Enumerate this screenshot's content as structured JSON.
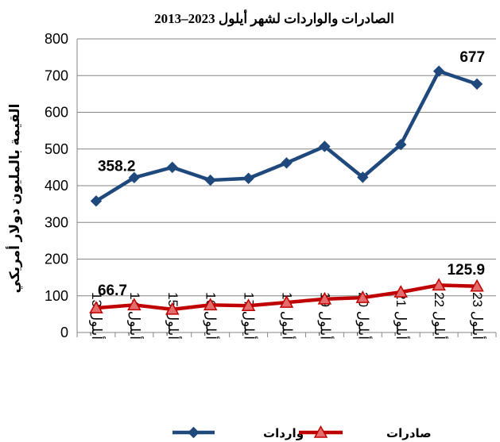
{
  "chart_data": {
    "type": "line",
    "title": "الصادرات والواردات لشهر أيلول 2023–2013",
    "ylabel": "القيمة بالمليون دولار أمريكي",
    "xlabel": "",
    "ylim": [
      0,
      800
    ],
    "yticks": [
      0,
      100,
      200,
      300,
      400,
      500,
      600,
      700,
      800
    ],
    "grid": true,
    "legend_position": "bottom",
    "categories": [
      "أيلول 13",
      "أيلول 14",
      "أيلول 15",
      "أيلول 16",
      "أيلول 17",
      "أيلول 18",
      "أيلول 19",
      "أيلول 20",
      "أيلول 21",
      "أيلول 22",
      "أيلول 23"
    ],
    "series": [
      {
        "name": "واردات",
        "color": "#1F497D",
        "marker": "diamond",
        "values": [
          358.2,
          422,
          450,
          415,
          420,
          462,
          507,
          423,
          512,
          712,
          677
        ],
        "data_labels": [
          {
            "index": 0,
            "text": "358.2"
          },
          {
            "index": 10,
            "text": "677"
          }
        ]
      },
      {
        "name": "صادرات",
        "color": "#C00000",
        "marker": "triangle",
        "values": [
          66.7,
          75,
          63,
          75,
          73,
          82,
          91,
          95,
          110,
          129,
          125.9
        ],
        "data_labels": [
          {
            "index": 0,
            "text": "66.7"
          },
          {
            "index": 10,
            "text": "125.9"
          }
        ]
      }
    ]
  }
}
